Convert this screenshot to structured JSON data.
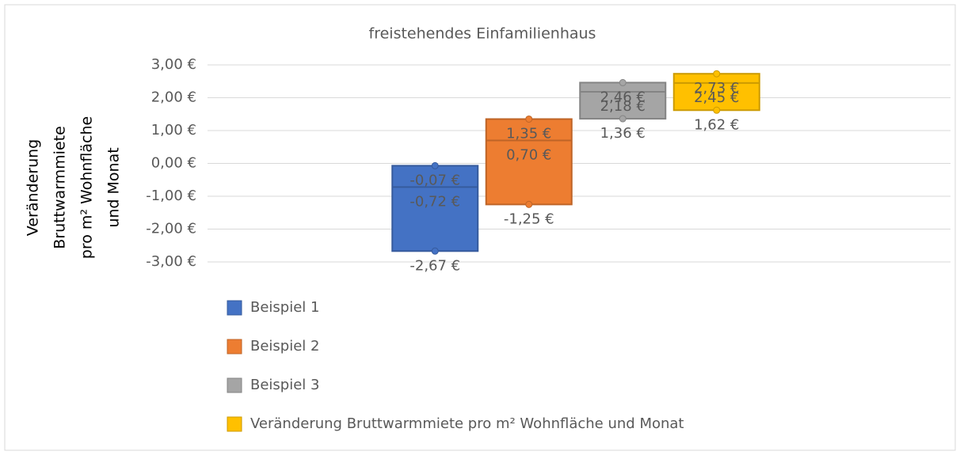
{
  "chart_data": {
    "type": "box",
    "title": "freistehendes Einfamilienhaus",
    "y_label_lines": [
      "Veränderung",
      "Bruttwarmmiete",
      "pro m² Wohnfläche",
      "und Monat"
    ],
    "ylim": [
      -3,
      3
    ],
    "yticks": [
      {
        "value": 3,
        "label": "3,00 €"
      },
      {
        "value": 2,
        "label": "2,00 €"
      },
      {
        "value": 1,
        "label": "1,00 €"
      },
      {
        "value": 0,
        "label": "0,00 €"
      },
      {
        "value": -1,
        "label": "-1,00 €"
      },
      {
        "value": -2,
        "label": "-2,00 €"
      },
      {
        "value": -3,
        "label": "-3,00 €"
      }
    ],
    "grid": true,
    "legend": "bottom-left",
    "series": [
      {
        "name": "Beispiel 1",
        "color": "#4472c4",
        "values": [
          -0.07,
          -0.72,
          -2.67
        ],
        "value_labels": [
          "-0,07 €",
          "-0,72 €",
          "-2,67 €"
        ]
      },
      {
        "name": "Beispiel 2",
        "color": "#ed7d31",
        "values": [
          1.35,
          0.7,
          -1.25
        ],
        "value_labels": [
          "1,35 €",
          "0,70 €",
          "-1,25 €"
        ]
      },
      {
        "name": "Beispiel 3",
        "color": "#a5a5a5",
        "values": [
          2.46,
          2.18,
          1.36
        ],
        "value_labels": [
          "2,46 €",
          "2,18 €",
          "1,36 €"
        ]
      },
      {
        "name": "Veränderung Bruttwarmmiete pro m² Wohnfläche und Monat",
        "color": "#ffc000",
        "values": [
          2.73,
          2.45,
          1.62
        ],
        "value_labels": [
          "2,73 €",
          "2,45 €",
          "1,62 €"
        ]
      }
    ]
  }
}
